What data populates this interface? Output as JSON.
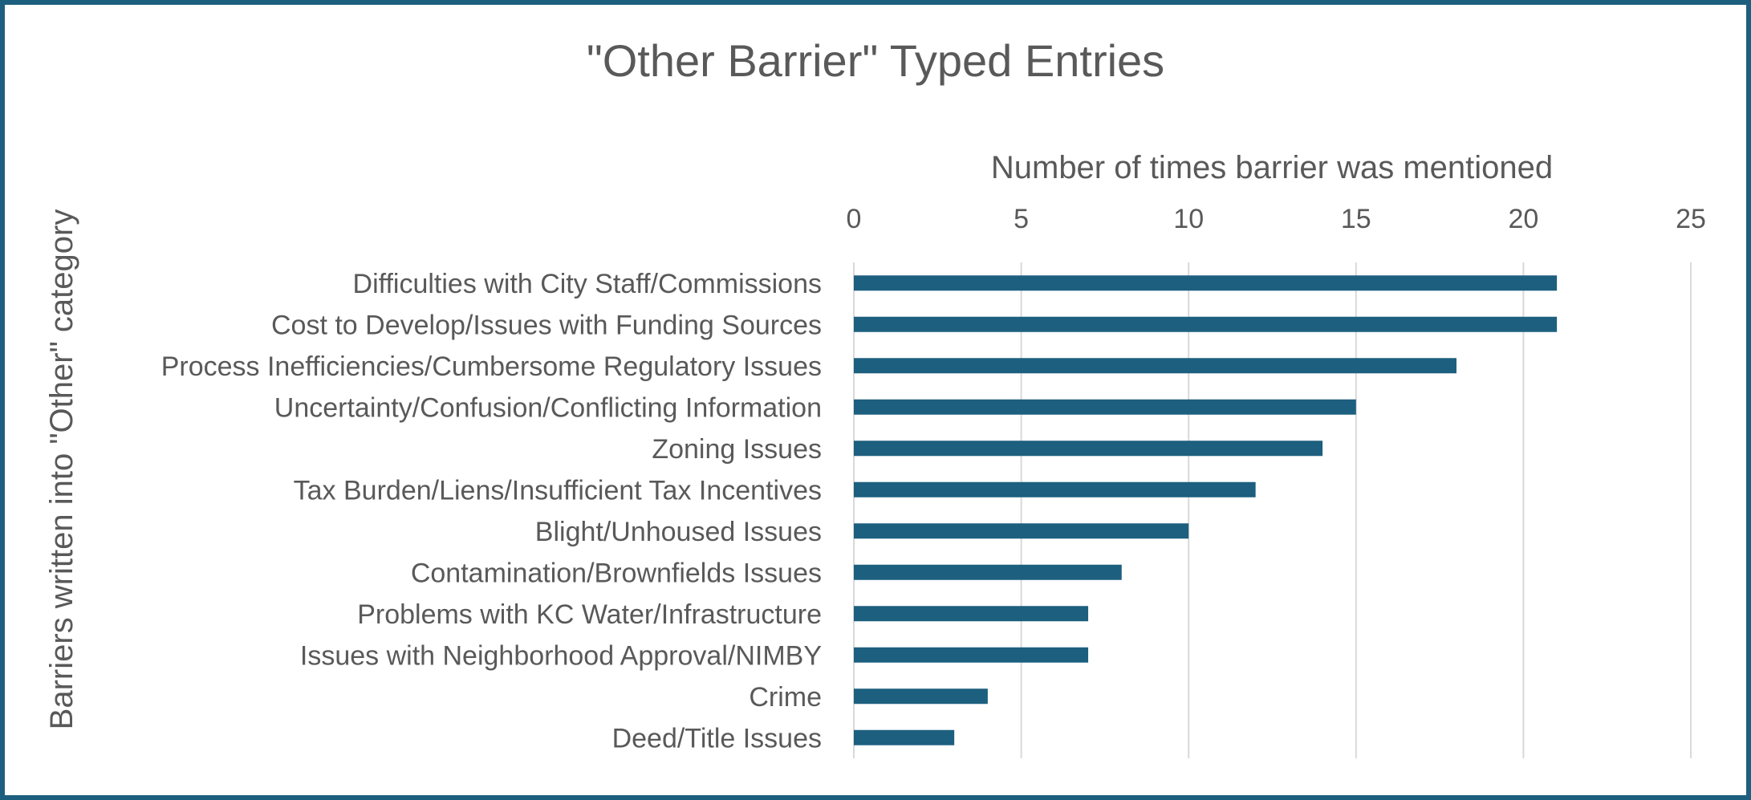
{
  "chart_data": {
    "type": "bar",
    "orientation": "horizontal",
    "title": "\"Other Barrier\" Typed Entries",
    "xlabel": "Number of times barrier was mentioned",
    "ylabel": "Barriers written into \"Other\" category",
    "xlim": [
      0,
      25
    ],
    "x_ticks": [
      "0",
      "5",
      "10",
      "15",
      "20",
      "25"
    ],
    "x_axis_position": "top",
    "grid": true,
    "legend": "none",
    "bar_color": "#1d5f7e",
    "border_color": "#1d5f7e",
    "categories": [
      "Difficulties with City Staff/Commissions",
      "Cost to Develop/Issues with Funding Sources",
      "Process Inefficiencies/Cumbersome Regulatory Issues",
      "Uncertainty/Confusion/Conflicting Information",
      "Zoning Issues",
      "Tax Burden/Liens/Insufficient Tax Incentives",
      "Blight/Unhoused Issues",
      "Contamination/Brownfields Issues",
      "Problems with KC Water/Infrastructure",
      "Issues with Neighborhood Approval/NIMBY",
      "Crime",
      "Deed/Title Issues"
    ],
    "values": [
      21,
      21,
      18,
      15,
      14,
      12,
      10,
      8,
      7,
      7,
      4,
      3
    ]
  }
}
